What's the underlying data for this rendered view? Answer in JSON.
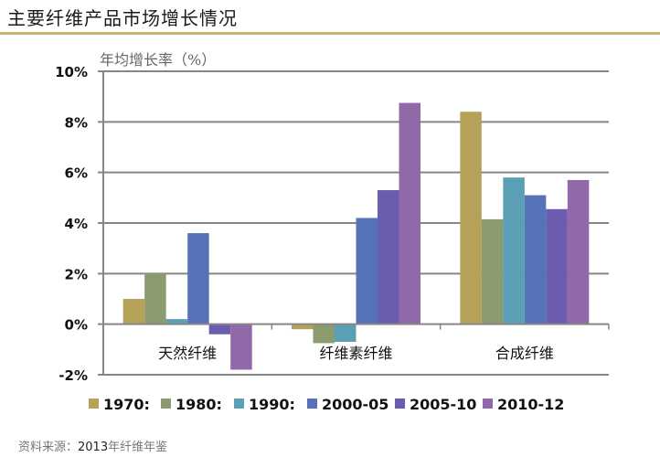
{
  "title": "主要纤维产品市场增长情况",
  "source_prefix": "资料来源：",
  "source_year": "2013",
  "source_suffix": "年纤维年鉴",
  "colors": {
    "title_rule": "#c8b46e",
    "axis": "#868686"
  },
  "chart_data": {
    "type": "bar",
    "title": "主要纤维产品市场增长情况",
    "ylabel": "年均增长率（%）",
    "xlabel": "",
    "ylim": [
      -2,
      10
    ],
    "yticks": [
      -2,
      0,
      2,
      4,
      6,
      8,
      10
    ],
    "ytick_labels": [
      "-2%",
      "0%",
      "2%",
      "4%",
      "6%",
      "8%",
      "10%"
    ],
    "grid": true,
    "legend_position": "bottom",
    "categories": [
      "天然纤维",
      "纤维素纤维",
      "合成纤维"
    ],
    "series": [
      {
        "name": "1970s",
        "legend_label": "1970:",
        "color": "#b5a258",
        "values": [
          1.0,
          -0.2,
          8.4
        ]
      },
      {
        "name": "1980s",
        "legend_label": "1980:",
        "color": "#8c9b6e",
        "values": [
          2.0,
          -0.75,
          4.15
        ]
      },
      {
        "name": "1990s",
        "legend_label": "1990:",
        "color": "#5b9fb5",
        "values": [
          0.2,
          -0.7,
          5.8
        ]
      },
      {
        "name": "2000-05",
        "legend_label": "2000-05",
        "color": "#5672b8",
        "values": [
          3.6,
          4.2,
          5.1
        ]
      },
      {
        "name": "2005-10",
        "legend_label": "2005-10",
        "color": "#6b5cb0",
        "values": [
          -0.4,
          5.3,
          4.55
        ]
      },
      {
        "name": "2010-12",
        "legend_label": "2010-12",
        "color": "#9168a8",
        "values": [
          -1.8,
          8.75,
          5.7
        ]
      }
    ]
  }
}
